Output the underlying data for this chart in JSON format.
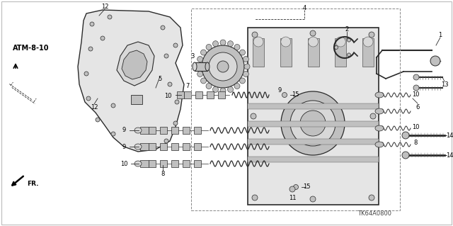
{
  "background_color": "#ffffff",
  "diagram_code": "TK64A0800",
  "ref_code": "ATM-8-10",
  "figsize": [
    6.4,
    3.19
  ],
  "dpi": 100,
  "line_color": "#333333",
  "light_gray": "#e8e8e8",
  "mid_gray": "#aaaaaa"
}
